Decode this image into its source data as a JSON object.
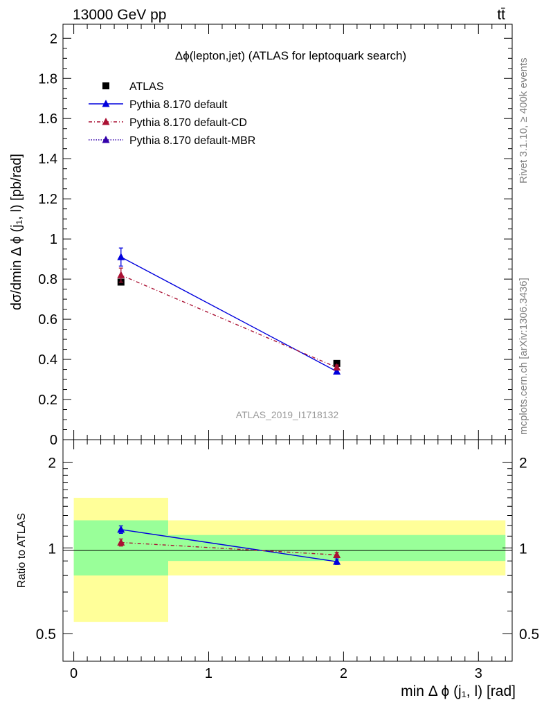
{
  "header": {
    "energy_label": "13000 GeV pp",
    "process_label": "tt̄"
  },
  "side_labels": {
    "rivet": "Rivet 3.1.10, ≥ 400k events",
    "mcplots": "mcplots.cern.ch [arXiv:1306.3436]"
  },
  "colors": {
    "atlas": "#000000",
    "default": "#0000dd",
    "cd": "#aa1133",
    "mbr": "#3300aa",
    "band_inner": "#99ff99",
    "band_outer": "#ffff99",
    "watermark": "#999999"
  },
  "chart_data": [
    {
      "panel": "main",
      "type": "scatter",
      "title": "Δϕ(lepton,jet) (ATLAS for leptoquark search)",
      "ylabel": "dσ/dmin Δ ϕ (j₁, l) [pb/rad]",
      "watermark": "ATLAS_2019_I1718132",
      "ylim": [
        0,
        2.07
      ],
      "xlim": [
        -0.08,
        3.25
      ],
      "yticks": [
        "0",
        "0.2",
        "0.4",
        "0.6",
        "0.8",
        "1",
        "1.2",
        "1.4",
        "1.6",
        "1.8",
        "2"
      ],
      "legend_position": "top-left",
      "bin_edges": [
        0,
        0.7,
        3.2
      ],
      "series": [
        {
          "name": "ATLAS",
          "marker": "square",
          "line": "none",
          "x": [
            0.35,
            1.95
          ],
          "y": [
            0.785,
            0.38
          ],
          "yerr": [
            0.012,
            0.01
          ]
        },
        {
          "name": "Pythia 8.170 default",
          "marker": "triangle",
          "line": "solid",
          "x": [
            0.35,
            1.95
          ],
          "y": [
            0.91,
            0.34
          ],
          "yerr": [
            0.045,
            0.012
          ]
        },
        {
          "name": "Pythia 8.170 default-CD",
          "marker": "triangle",
          "line": "dashdot",
          "x": [
            0.35,
            1.95
          ],
          "y": [
            0.82,
            0.36
          ],
          "yerr": [
            0.035,
            0.012
          ]
        },
        {
          "name": "Pythia 8.170 default-MBR",
          "marker": "triangle",
          "line": "dotted",
          "x": [],
          "y": [],
          "yerr": []
        }
      ]
    },
    {
      "panel": "ratio",
      "type": "line",
      "ylabel": "Ratio to ATLAS",
      "xlabel": "min Δ ϕ (j₁, l) [rad]",
      "ylim": [
        0.4,
        2.4
      ],
      "yscale": "log",
      "xlim": [
        -0.08,
        3.25
      ],
      "xticks": [
        "0",
        "1",
        "2",
        "3"
      ],
      "yticks": [
        "0.5",
        "1",
        "2"
      ],
      "reference_line": 1,
      "bands": [
        {
          "x0": 0,
          "x1": 0.7,
          "outer": [
            0.55,
            1.5
          ],
          "inner": [
            0.8,
            1.25
          ]
        },
        {
          "x0": 0.7,
          "x1": 3.2,
          "outer": [
            0.8,
            1.25
          ],
          "inner": [
            0.9,
            1.11
          ]
        }
      ],
      "series": [
        {
          "name": "Pythia 8.170 default",
          "x": [
            0.35,
            1.95
          ],
          "y": [
            1.16,
            0.895
          ],
          "yerr": [
            0.035,
            0.02
          ]
        },
        {
          "name": "Pythia 8.170 default-CD",
          "x": [
            0.35,
            1.95
          ],
          "y": [
            1.045,
            0.945
          ],
          "yerr": [
            0.03,
            0.02
          ]
        }
      ]
    }
  ]
}
